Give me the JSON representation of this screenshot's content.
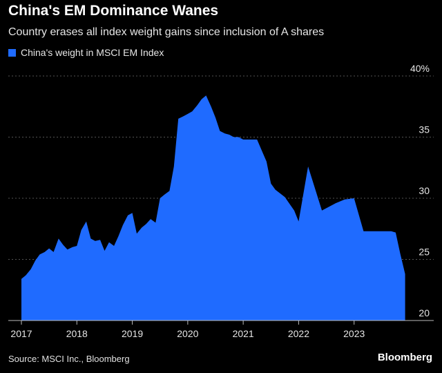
{
  "chart_data": {
    "type": "area",
    "title": "China's EM Dominance Wanes",
    "subtitle": "Country erases all index weight gains since inclusion of A shares",
    "legend": [
      {
        "label": "China's weight in MSCI EM Index",
        "color": "#1f6bff"
      }
    ],
    "source": "Source: MSCI Inc., Bloomberg",
    "brand": "Bloomberg",
    "yaxis": {
      "min": 20,
      "max": 40,
      "side": "right",
      "ticks": [
        {
          "value": 20,
          "label": "20"
        },
        {
          "value": 25,
          "label": "25"
        },
        {
          "value": 30,
          "label": "30"
        },
        {
          "value": 35,
          "label": "35"
        },
        {
          "value": 40,
          "label": "40%"
        }
      ]
    },
    "xaxis": {
      "min": 2017.0,
      "max": 2024.0,
      "ticks": [
        {
          "value": 2017,
          "label": "2017"
        },
        {
          "value": 2018,
          "label": "2018"
        },
        {
          "value": 2019,
          "label": "2019"
        },
        {
          "value": 2020,
          "label": "2020"
        },
        {
          "value": 2021,
          "label": "2021"
        },
        {
          "value": 2022,
          "label": "2022"
        },
        {
          "value": 2023,
          "label": "2023"
        }
      ]
    },
    "series": [
      {
        "name": "China's weight in MSCI EM Index",
        "color": "#1f6bff",
        "x": [
          2017.0,
          2017.08,
          2017.17,
          2017.25,
          2017.33,
          2017.42,
          2017.5,
          2017.58,
          2017.67,
          2017.75,
          2017.83,
          2017.92,
          2018.0,
          2018.08,
          2018.17,
          2018.25,
          2018.33,
          2018.42,
          2018.5,
          2018.58,
          2018.67,
          2018.75,
          2018.83,
          2018.92,
          2019.0,
          2019.08,
          2019.17,
          2019.25,
          2019.33,
          2019.42,
          2019.5,
          2019.58,
          2019.67,
          2019.75,
          2019.83,
          2019.92,
          2020.0,
          2020.08,
          2020.17,
          2020.25,
          2020.33,
          2020.42,
          2020.5,
          2020.58,
          2020.67,
          2020.75,
          2020.83,
          2020.92,
          2021.0,
          2021.25,
          2021.42,
          2021.5,
          2021.58,
          2021.75,
          2021.92,
          2022.0,
          2022.17,
          2022.42,
          2022.67,
          2022.83,
          2023.0,
          2023.17,
          2023.42,
          2023.67,
          2023.75,
          2023.83,
          2023.92
        ],
        "values": [
          23.4,
          23.7,
          24.2,
          24.9,
          25.4,
          25.6,
          25.9,
          25.6,
          26.7,
          26.2,
          25.8,
          26.0,
          26.1,
          27.4,
          28.1,
          26.7,
          26.5,
          26.6,
          25.7,
          26.4,
          26.1,
          26.9,
          27.8,
          28.6,
          28.8,
          27.1,
          27.6,
          27.9,
          28.3,
          28.0,
          30.0,
          30.3,
          30.6,
          32.6,
          36.5,
          36.7,
          36.9,
          37.1,
          37.6,
          38.1,
          38.4,
          37.5,
          36.6,
          35.5,
          35.3,
          35.2,
          35.0,
          35.0,
          34.8,
          34.8,
          33.0,
          31.2,
          30.7,
          30.1,
          29.0,
          28.1,
          32.6,
          29.0,
          29.6,
          29.9,
          30.0,
          27.3,
          27.3,
          27.3,
          27.2,
          25.5,
          23.8
        ]
      }
    ]
  }
}
